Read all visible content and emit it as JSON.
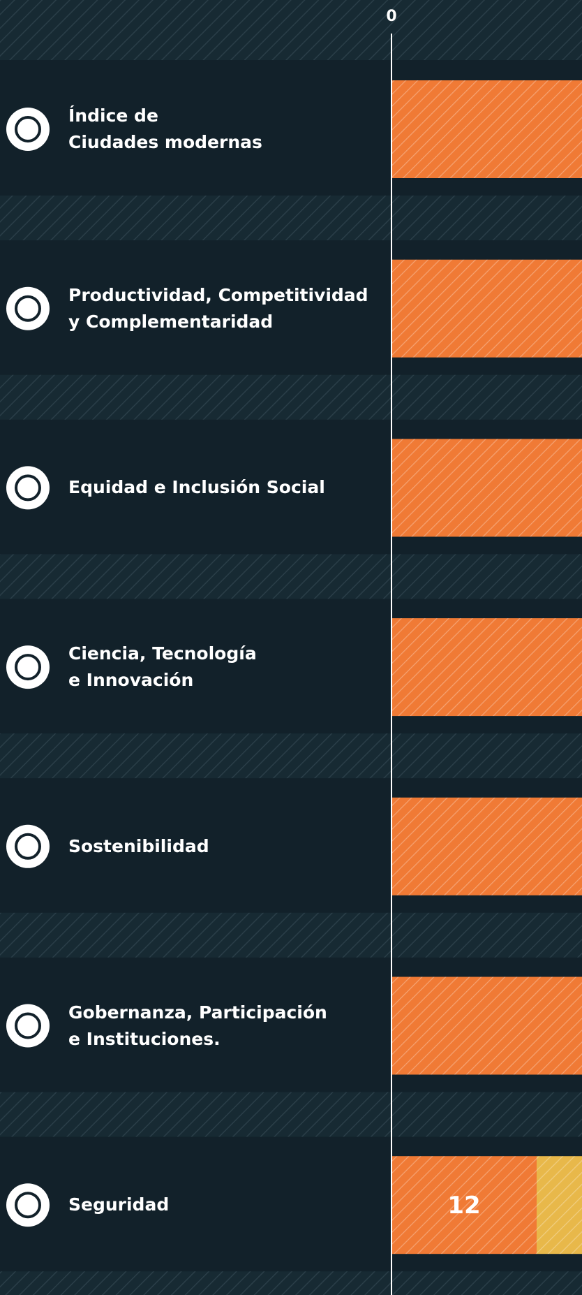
{
  "chart_data": {
    "type": "bar",
    "orientation": "horizontal",
    "stacked": true,
    "categories": [
      "Índice de\nCiudades modernas",
      "Productividad, Competitividad\ny Complementaridad",
      "Equidad e Inclusión Social",
      "Ciencia, Tecnología\ne Innovación",
      "Sostenibilidad",
      "Gobernanza, Participación\ne Instituciones.",
      "Seguridad"
    ],
    "series": [
      {
        "color": "#f07a35",
        "values": [
          16,
          16,
          16,
          16,
          16,
          16,
          12
        ]
      },
      {
        "color": "#e8b84a",
        "values": [
          null,
          null,
          null,
          null,
          null,
          null,
          4
        ]
      }
    ],
    "xlim": [
      0,
      15.75
    ],
    "xticks": [
      0
    ]
  }
}
